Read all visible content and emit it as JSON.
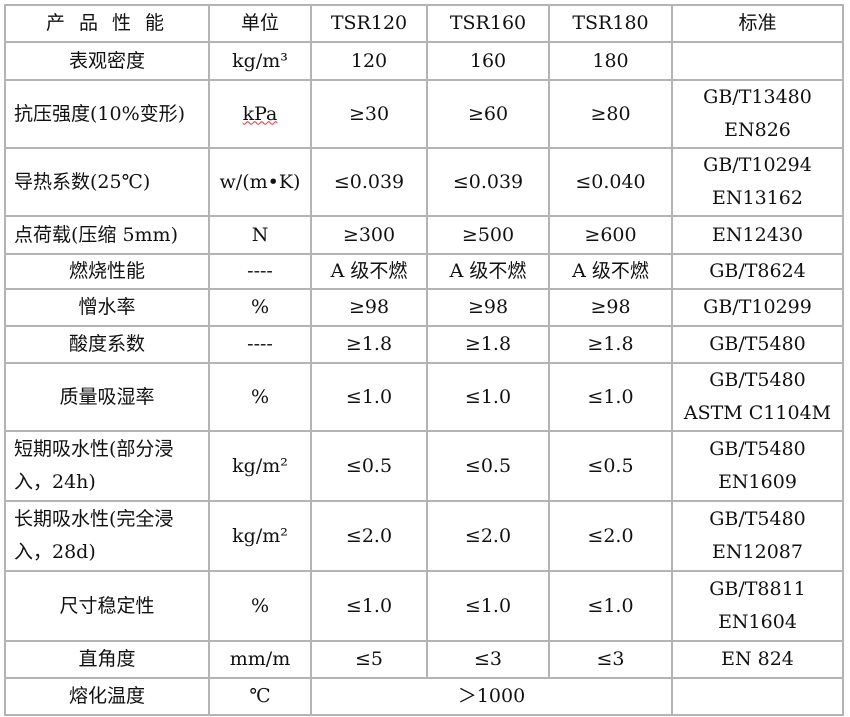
{
  "header": [
    "产 品 性 能",
    "单位",
    "TSR120",
    "TSR160",
    "TSR180",
    "标准"
  ],
  "rows": [
    {
      "property": "表观密度",
      "unit": "kg/m³",
      "tsr120": "120",
      "tsr160": "160",
      "tsr180": "180",
      "standard": ""
    },
    {
      "property": "抗压强度(10%变形)",
      "unit": "kPa",
      "tsr120": "≥30",
      "tsr160": "≥60",
      "tsr180": "≥80",
      "standard": "GB/T13480 EN826"
    },
    {
      "property": "导热系数(25℃)",
      "unit": "w/(m•K)",
      "tsr120": "≤0.039",
      "tsr160": "≤0.039",
      "tsr180": "≤0.040",
      "standard": "GB/T10294 EN13162"
    },
    {
      "property": "点荷载(压缩 5mm)",
      "unit": "N",
      "tsr120": "≥300",
      "tsr160": "≥500",
      "tsr180": "≥600",
      "standard": "EN12430"
    },
    {
      "property": "燃烧性能",
      "unit": "----",
      "tsr120": "A 级不燃",
      "tsr160": "A 级不燃",
      "tsr180": "A 级不燃",
      "standard": "GB/T8624"
    },
    {
      "property": "憎水率",
      "unit": "%",
      "tsr120": "≥98",
      "tsr160": "≥98",
      "tsr180": "≥98",
      "standard": "GB/T10299"
    },
    {
      "property": "酸度系数",
      "unit": "----",
      "tsr120": "≥1.8",
      "tsr160": "≥1.8",
      "tsr180": "≥1.8",
      "standard": "GB/T5480"
    },
    {
      "property": "质量吸湿率",
      "unit": "%",
      "tsr120": "≤1.0",
      "tsr160": "≤1.0",
      "tsr180": "≤1.0",
      "standard": "GB/T5480 ASTM C1104M"
    },
    {
      "property": "短期吸水性(部分浸入，24h)",
      "unit": "kg/m²",
      "tsr120": "≤0.5",
      "tsr160": "≤0.5",
      "tsr180": "≤0.5",
      "standard": "GB/T5480 EN1609"
    },
    {
      "property": "长期吸水性(完全浸入，28d)",
      "unit": "kg/m²",
      "tsr120": "≤2.0",
      "tsr160": "≤2.0",
      "tsr180": "≤2.0",
      "standard": "GB/T5480 EN12087"
    },
    {
      "property": "尺寸稳定性",
      "unit": "%",
      "tsr120": "≤1.0",
      "tsr160": "≤1.0",
      "tsr180": "≤1.0",
      "standard": "GB/T8811 EN1604"
    },
    {
      "property": "直角度",
      "unit": "mm/m",
      "tsr120": "≤5",
      "tsr160": "≤3",
      "tsr180": "≤3",
      "standard": "EN 824"
    }
  ],
  "last_row": {
    "property": "熔化温度",
    "unit": "℃",
    "value": "＞1000",
    "standard": ""
  }
}
